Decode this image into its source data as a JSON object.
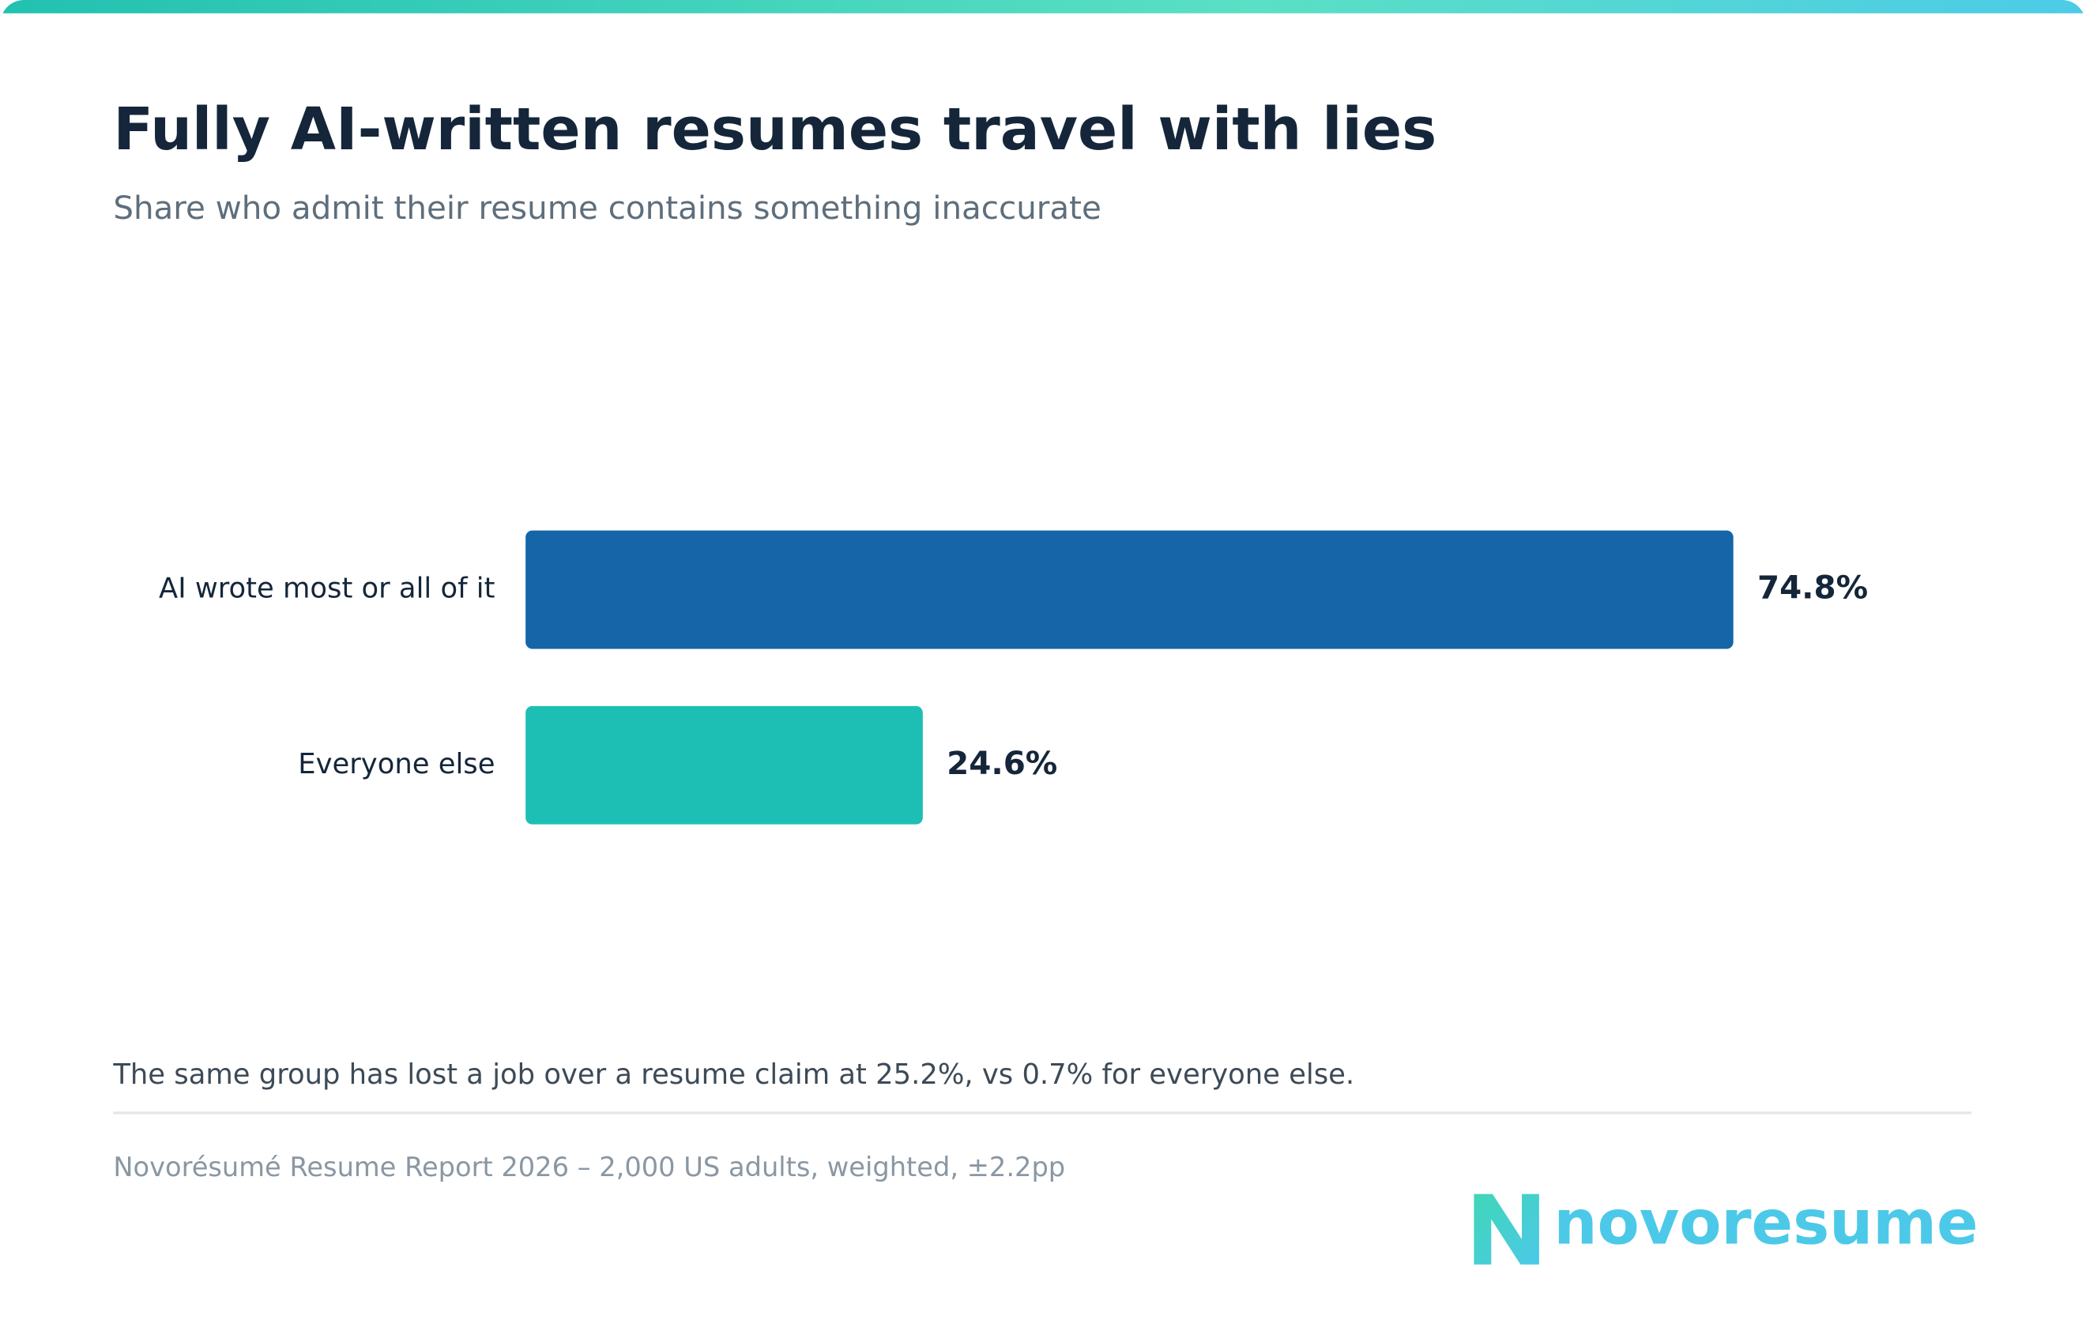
{
  "chart_data": {
    "type": "hbar",
    "title": "Fully AI-written resumes travel with lies",
    "subtitle": "Share who admit their resume contains something inaccurate",
    "categories": [
      "AI wrote most or all of it",
      "Everyone else"
    ],
    "values": [
      74.8,
      24.6
    ],
    "value_labels": [
      "74.8%",
      "24.6%"
    ],
    "colors": [
      "#1565a8",
      "#1dbfb5"
    ],
    "note": "The same group has lost a job over a resume claim at 25.2%, vs 0.7% for everyone else.",
    "source": "Novorésumé Resume Report 2026 – 2,000 US adults, weighted, ±2.2pp",
    "brand": "novoresume"
  }
}
